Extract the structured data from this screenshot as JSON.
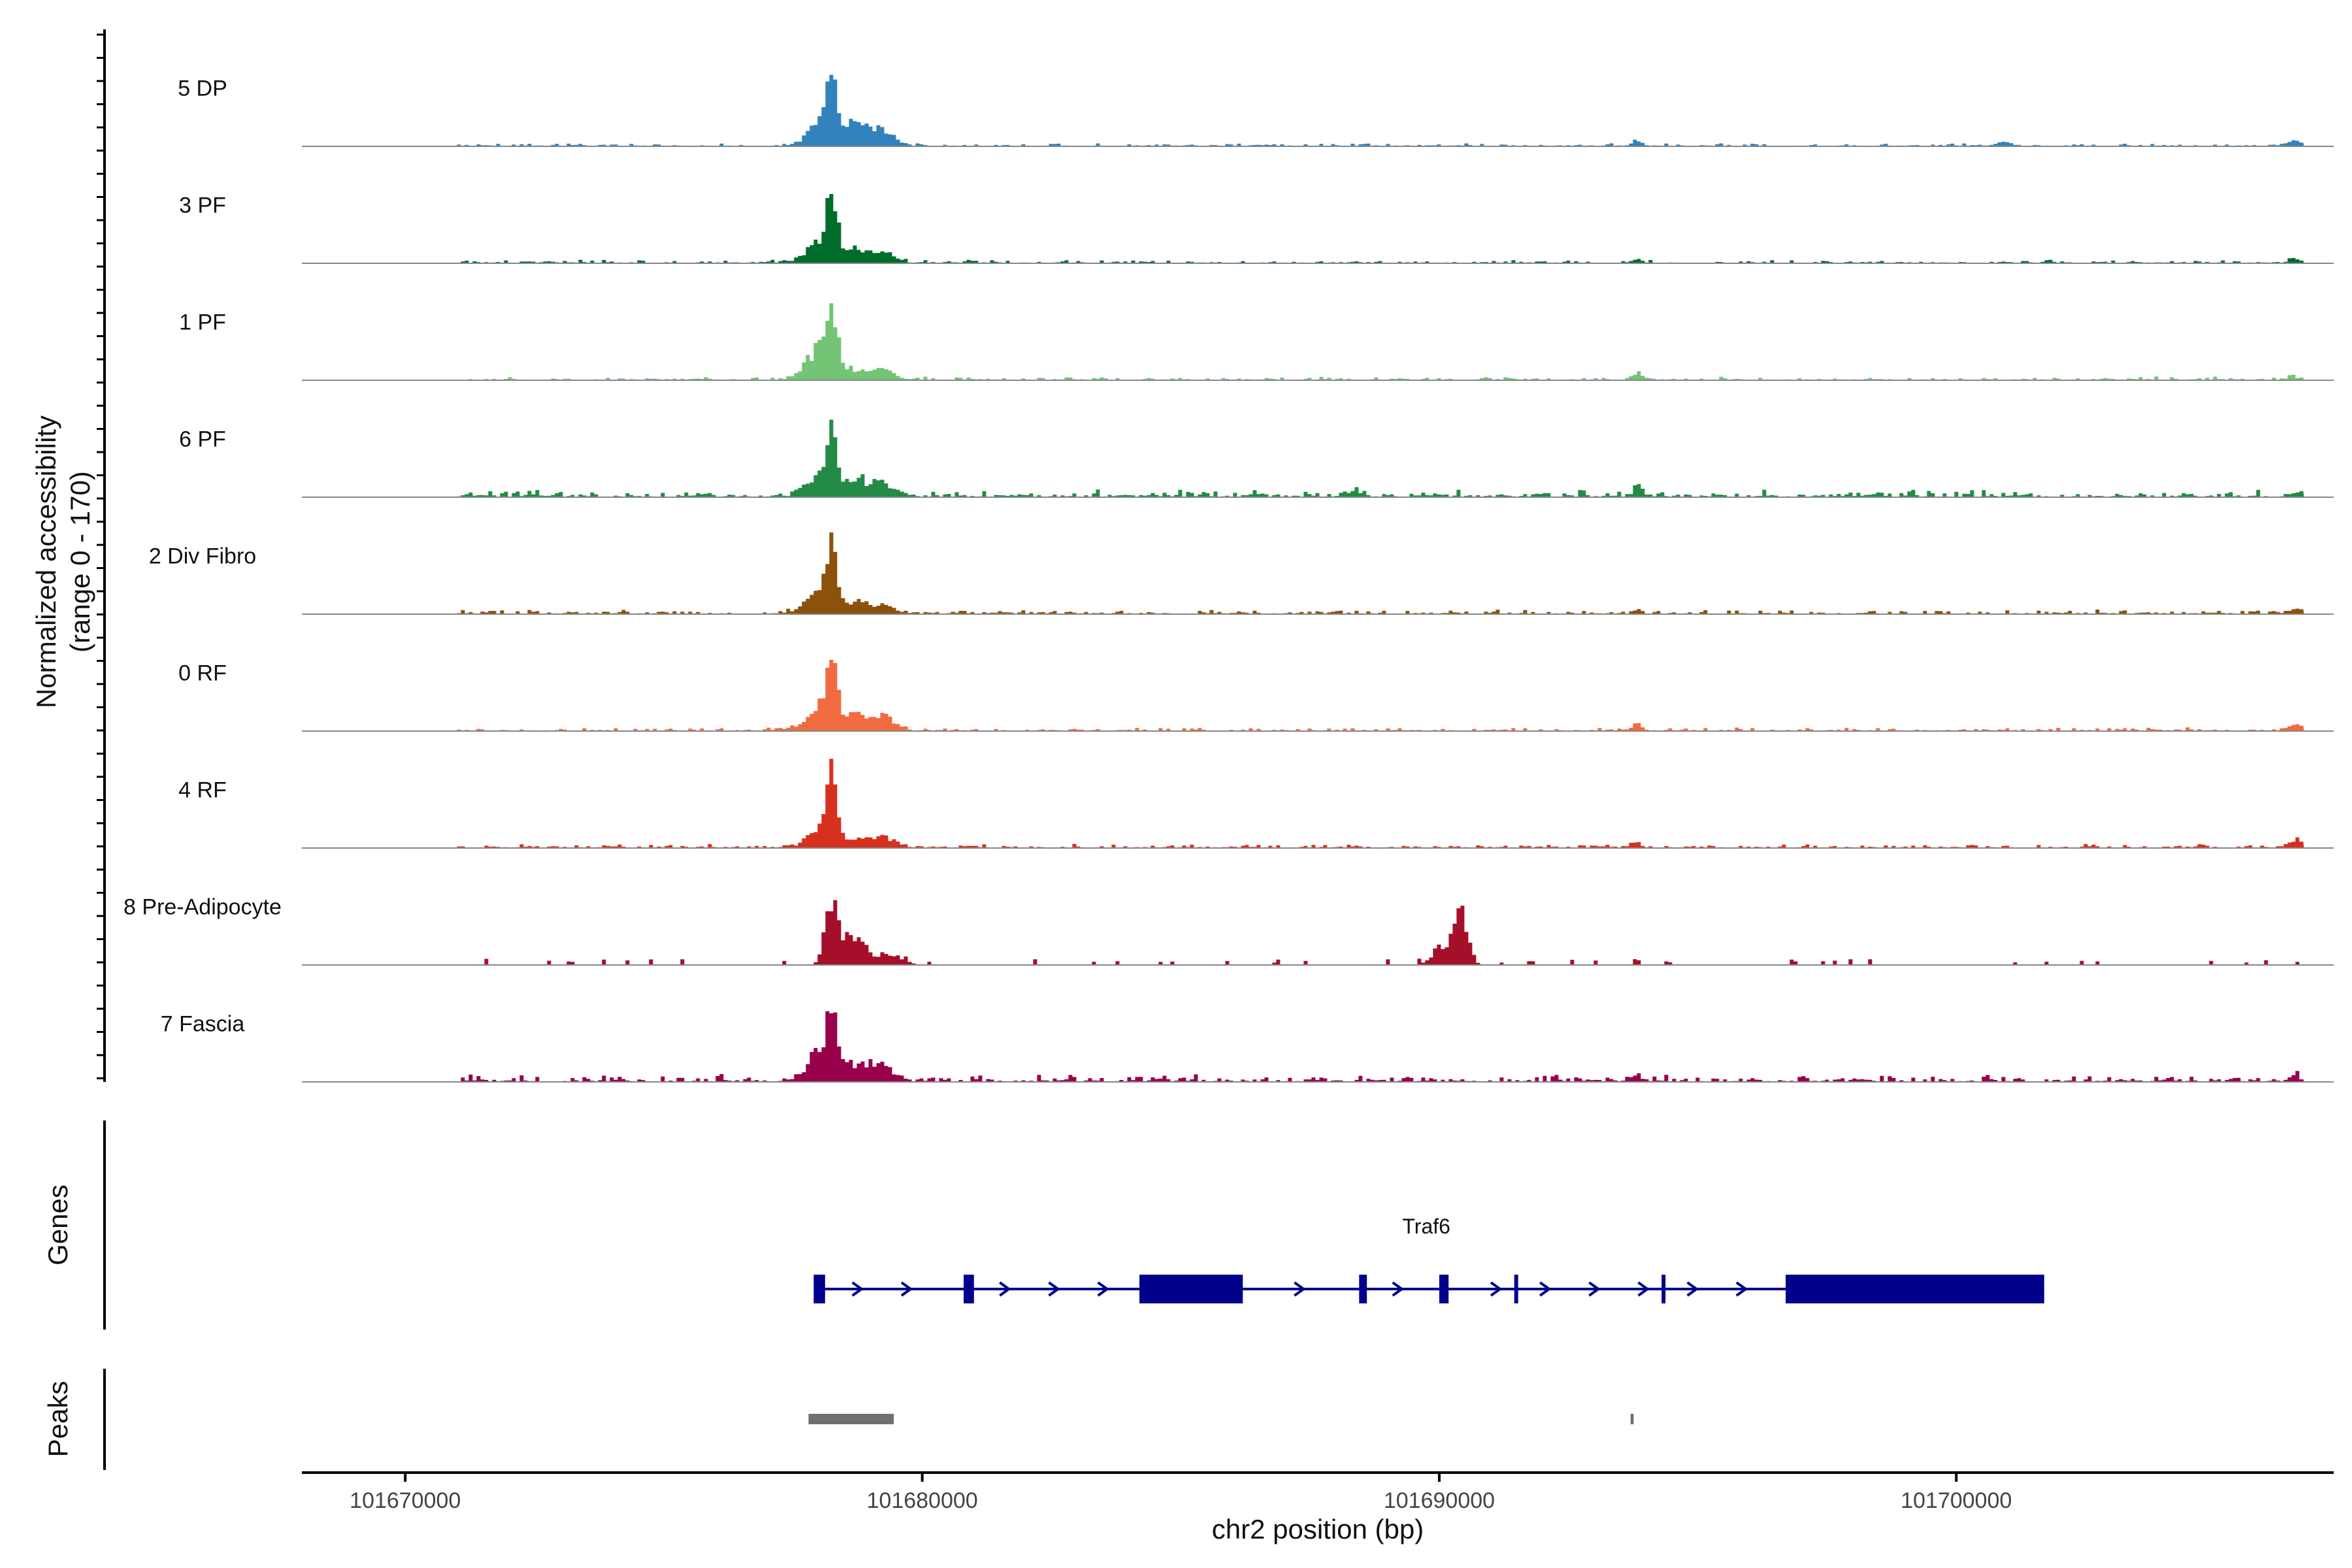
{
  "chart_data": {
    "type": "coverage-track",
    "title": "",
    "x_axis": {
      "label": "chr2 position (bp)",
      "range": [
        101668000,
        101707300
      ],
      "ticks": [
        101670000,
        101680000,
        101690000,
        101700000
      ],
      "tick_labels": [
        "101670000",
        "101680000",
        "101690000",
        "101700000"
      ]
    },
    "y_axis": {
      "label_line1": "Normalized accessibility",
      "label_line2": "(range 0 - 170)",
      "range": [
        0,
        170
      ]
    },
    "tracks": [
      {
        "name": "5 DP",
        "color": "#3182bd",
        "baseline": 1.0,
        "peaks": [
          [
            101678000,
            50,
            0.26,
            0.7
          ],
          [
            101678220,
            135,
            0.1,
            0.9
          ],
          [
            101678700,
            60,
            0.2,
            0.8
          ],
          [
            101679200,
            35,
            0.22,
            0.8
          ],
          [
            101693800,
            15,
            0.08,
            0.8
          ],
          [
            101700900,
            9,
            0.15,
            0.8
          ],
          [
            101706500,
            12,
            0.12,
            0.8
          ]
        ]
      },
      {
        "name": "3 PF",
        "color": "#006d2c",
        "baseline": 1.2,
        "peaks": [
          [
            101678000,
            50,
            0.26,
            0.7
          ],
          [
            101678220,
            160,
            0.1,
            0.9
          ],
          [
            101678700,
            30,
            0.18,
            0.8
          ],
          [
            101679200,
            26,
            0.22,
            0.8
          ],
          [
            101693800,
            10,
            0.08,
            0.8
          ],
          [
            101706500,
            10,
            0.12,
            0.8
          ]
        ]
      },
      {
        "name": "1 PF",
        "color": "#74c476",
        "baseline": 1.2,
        "peaks": [
          [
            101678000,
            70,
            0.26,
            0.7
          ],
          [
            101678220,
            150,
            0.1,
            0.9
          ],
          [
            101678700,
            20,
            0.18,
            0.8
          ],
          [
            101679200,
            26,
            0.22,
            0.8
          ],
          [
            101693800,
            18,
            0.08,
            0.8
          ],
          [
            101706500,
            7,
            0.12,
            0.8
          ]
        ]
      },
      {
        "name": "6 PF",
        "color": "#238b45",
        "baseline": 2.5,
        "peaks": [
          [
            101678000,
            55,
            0.26,
            0.7
          ],
          [
            101678220,
            115,
            0.1,
            0.9
          ],
          [
            101678700,
            35,
            0.18,
            0.8
          ],
          [
            101679200,
            30,
            0.22,
            0.8
          ],
          [
            101693800,
            24,
            0.08,
            0.8
          ],
          [
            101688300,
            10,
            0.2,
            0.8
          ],
          [
            101706500,
            10,
            0.12,
            0.8
          ]
        ]
      },
      {
        "name": "2 Div Fibro",
        "color": "#8c510a",
        "baseline": 1.5,
        "peaks": [
          [
            101678000,
            55,
            0.26,
            0.7
          ],
          [
            101678220,
            130,
            0.1,
            0.9
          ],
          [
            101678700,
            30,
            0.18,
            0.8
          ],
          [
            101679200,
            18,
            0.22,
            0.8
          ],
          [
            101693800,
            8,
            0.08,
            0.8
          ],
          [
            101706500,
            8,
            0.12,
            0.8
          ]
        ]
      },
      {
        "name": "0 RF",
        "color": "#f16b40",
        "baseline": 1.2,
        "peaks": [
          [
            101678000,
            60,
            0.26,
            0.7
          ],
          [
            101678220,
            160,
            0.1,
            0.9
          ],
          [
            101678700,
            40,
            0.18,
            0.8
          ],
          [
            101679200,
            36,
            0.22,
            0.8
          ],
          [
            101693800,
            16,
            0.08,
            0.8
          ],
          [
            101706500,
            13,
            0.12,
            0.8
          ]
        ]
      },
      {
        "name": "4 RF",
        "color": "#d7301f",
        "baseline": 1.4,
        "peaks": [
          [
            101678000,
            40,
            0.26,
            0.7
          ],
          [
            101678220,
            150,
            0.1,
            0.9
          ],
          [
            101678700,
            15,
            0.18,
            0.8
          ],
          [
            101679200,
            26,
            0.22,
            0.8
          ],
          [
            101693800,
            14,
            0.08,
            0.8
          ],
          [
            101706500,
            18,
            0.12,
            0.8
          ]
        ]
      },
      {
        "name": "8 Pre-Adipocyte",
        "color": "#a50f29",
        "baseline": 0,
        "peaks": [
          [
            101678200,
            150,
            0.12,
            0.6
          ],
          [
            101678600,
            70,
            0.2,
            0.6
          ],
          [
            101679300,
            30,
            0.25,
            0.6
          ],
          [
            101690100,
            50,
            0.22,
            0.6
          ],
          [
            101690400,
            100,
            0.12,
            0.6
          ]
        ]
      },
      {
        "name": "7 Fascia",
        "color": "#99004c",
        "baseline": 2.5,
        "peaks": [
          [
            101678000,
            60,
            0.26,
            0.7
          ],
          [
            101678220,
            140,
            0.1,
            0.9
          ],
          [
            101678700,
            40,
            0.18,
            0.8
          ],
          [
            101679200,
            40,
            0.22,
            0.8
          ],
          [
            101693800,
            14,
            0.08,
            0.8
          ],
          [
            101706500,
            12,
            0.12,
            0.8
          ]
        ]
      }
    ],
    "genes_track": {
      "label": "Genes",
      "color": "#00008b",
      "gene": {
        "name": "Traf6",
        "start": 101677800,
        "end": 101701700,
        "strand": "+",
        "exons": [
          [
            101677900,
            101678120
          ],
          [
            101680800,
            101681000
          ],
          [
            101684200,
            101686200
          ],
          [
            101688450,
            101688600
          ],
          [
            101690000,
            101690180
          ],
          [
            101691450,
            101691500
          ],
          [
            101694300,
            101694350
          ],
          [
            101696700,
            101701700
          ]
        ]
      }
    },
    "peaks_track": {
      "label": "Peaks",
      "color": "#707070",
      "regions": [
        [
          101677800,
          101679450
        ],
        [
          101693700,
          101693760
        ]
      ]
    }
  }
}
